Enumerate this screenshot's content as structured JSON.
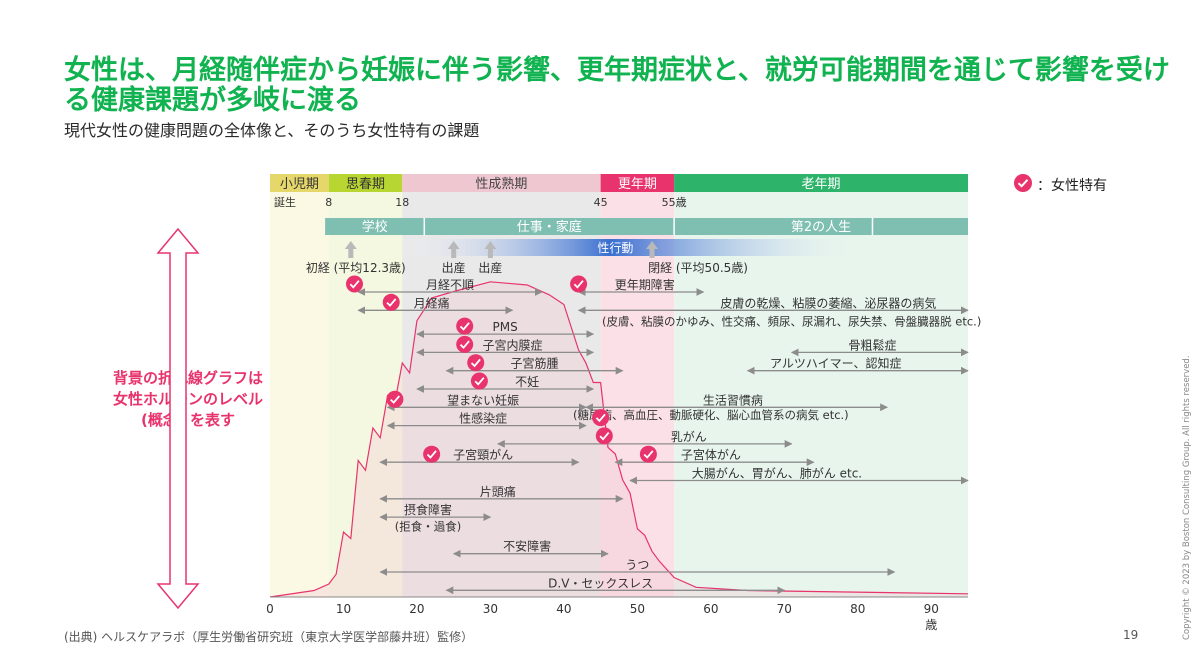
{
  "title": "女性は、月経随伴症から妊娠に伴う影響、更年期症状と、就労可能期間を通じて影響を受ける健康課題が多岐に渡る",
  "subtitle": "現代女性の健康問題の全体像と、そのうち女性特有の課題",
  "legend_label": "：女性特有",
  "side_note": [
    "背景の折れ線グラフは",
    "女性ホルモンのレベル",
    "(概念) を表す"
  ],
  "source": "(出典) ヘルスケアラボ（厚生労働省研究班（東京大学医学部藤井班）監修）",
  "page_number": "19",
  "copyright": "Copyright © 2023 by Boston Consulting Group. All rights reserved.",
  "colors": {
    "title_green": "#10b34f",
    "accent_pink": "#e8336d",
    "childhood": "#e6d76b",
    "puberty": "#b7d631",
    "maturity": "#efc7d1",
    "menopause": "#e8336d",
    "old_age": "#2eb36b",
    "activity_bar": "#7fbfb2"
  },
  "axis": {
    "min": 0,
    "max": 95,
    "ticks": [
      0,
      10,
      20,
      30,
      40,
      50,
      60,
      70,
      80,
      90
    ],
    "unit": "歳"
  },
  "stages": [
    {
      "label": "小児期",
      "start": 0,
      "end": 8,
      "color": "#e6d76b",
      "text_color": "#333333"
    },
    {
      "label": "思春期",
      "start": 8,
      "end": 18,
      "color": "#b7d631",
      "text_color": "#333333"
    },
    {
      "label": "性成熟期",
      "start": 18,
      "end": 45,
      "color": "#efc7d1",
      "text_color": "#444444"
    },
    {
      "label": "更年期",
      "start": 45,
      "end": 55,
      "color": "#e8336d",
      "text_color": "#ffffff"
    },
    {
      "label": "老年期",
      "start": 55,
      "end": 95,
      "color": "#2eb36b",
      "text_color": "#ffffff"
    }
  ],
  "age_markers": [
    {
      "label": "誕生",
      "age": 0
    },
    {
      "label": "8",
      "age": 8
    },
    {
      "label": "18",
      "age": 18
    },
    {
      "label": "45",
      "age": 45
    },
    {
      "label": "55歳",
      "age": 55
    }
  ],
  "activities": [
    {
      "label": "学校",
      "start": 7.5,
      "end": 21
    },
    {
      "label": "仕事・家庭",
      "start": 21,
      "end": 55
    },
    {
      "label": "第2の人生",
      "start": 55,
      "end": 95
    }
  ],
  "activity_dividers": [
    21,
    55,
    82
  ],
  "gradient_bar_label": "性行動",
  "life_events": [
    {
      "label": "初経 (平均12.3歳)",
      "age": 11
    },
    {
      "label": "出産",
      "age": 25
    },
    {
      "label": "出産",
      "age": 30
    },
    {
      "label": "閉経 (平均50.5歳)",
      "age": 52
    }
  ],
  "issues": [
    {
      "label": "月経不順",
      "start": 12,
      "end": 37,
      "female_specific": true,
      "row": 0,
      "label_at": 24.5,
      "check_at": 11.5
    },
    {
      "label": "更年期障害",
      "start": 42,
      "end": 59,
      "female_specific": true,
      "row": 0,
      "label_at": 51,
      "check_at": 42
    },
    {
      "label": "月経痛",
      "start": 12,
      "end": 33,
      "female_specific": true,
      "row": 1,
      "label_at": 22,
      "check_at": 16.5
    },
    {
      "label": "皮膚の乾燥、粘膜の萎縮、泌尿器の病気",
      "start": 42,
      "end": 95,
      "female_specific": false,
      "row": 1,
      "label_at": 76
    },
    {
      "label": "(皮膚、粘膜のかゆみ、性交痛、頻尿、尿漏れ、尿失禁、骨盤臓器脱 etc.)",
      "start": 0,
      "end": 0,
      "female_specific": false,
      "row": 2,
      "label_at": 71,
      "note": true
    },
    {
      "label": "PMS",
      "start": 20,
      "end": 44,
      "female_specific": true,
      "row": 2.3,
      "label_at": 32,
      "check_at": 26.5
    },
    {
      "label": "子宮内膜症",
      "start": 20,
      "end": 44,
      "female_specific": true,
      "row": 3.3,
      "label_at": 33,
      "check_at": 26.5
    },
    {
      "label": "骨粗鬆症",
      "start": 71,
      "end": 95,
      "female_specific": false,
      "row": 3.3,
      "label_at": 82
    },
    {
      "label": "子宮筋腫",
      "start": 24,
      "end": 48,
      "female_specific": true,
      "row": 4.3,
      "label_at": 36,
      "check_at": 28
    },
    {
      "label": "アルツハイマー、認知症",
      "start": 65,
      "end": 95,
      "female_specific": false,
      "row": 4.3,
      "label_at": 77
    },
    {
      "label": "不妊",
      "start": 20,
      "end": 44,
      "female_specific": true,
      "row": 5.3,
      "label_at": 35,
      "check_at": 28.5
    },
    {
      "label": "望まない妊娠",
      "start": 16,
      "end": 43,
      "female_specific": true,
      "row": 6.3,
      "label_at": 29,
      "check_at": 17
    },
    {
      "label": "生活習慣病",
      "start": 43,
      "end": 84,
      "female_specific": false,
      "row": 6.3,
      "label_at": 63
    },
    {
      "label": "(糖尿病、高血圧、動脈硬化、脳心血管系の病気 etc.)",
      "start": 0,
      "end": 0,
      "female_specific": false,
      "row": 7.1,
      "label_at": 60,
      "note": true
    },
    {
      "label": "性感染症",
      "start": 16,
      "end": 43,
      "female_specific": true,
      "row": 7.3,
      "label_at": 29,
      "check_at": 45
    },
    {
      "label": "乳がん",
      "start": 31,
      "end": 71,
      "female_specific": true,
      "row": 8.3,
      "label_at": 57,
      "check_at": 45.5
    },
    {
      "label": "子宮頸がん",
      "start": 15,
      "end": 42,
      "female_specific": true,
      "row": 9.3,
      "label_at": 29,
      "check_at": 22
    },
    {
      "label": "子宮体がん",
      "start": 47,
      "end": 74,
      "female_specific": true,
      "row": 9.3,
      "label_at": 60,
      "check_at": 51.5
    },
    {
      "label": "大腸がん、胃がん、肺がん etc.",
      "start": 49,
      "end": 95,
      "female_specific": false,
      "row": 10.3,
      "label_at": 69
    },
    {
      "label": "片頭痛",
      "start": 15,
      "end": 48,
      "female_specific": false,
      "row": 11.3,
      "label_at": 31
    },
    {
      "label": "摂食障害",
      "start": 15,
      "end": 30,
      "female_specific": false,
      "row": 12.3,
      "label_at": 21.5
    },
    {
      "label": "(拒食・過食)",
      "start": 0,
      "end": 0,
      "female_specific": false,
      "row": 13.2,
      "label_at": 21.5,
      "note": true
    },
    {
      "label": "不安障害",
      "start": 25,
      "end": 46,
      "female_specific": false,
      "row": 14.3,
      "label_at": 35
    },
    {
      "label": "うつ",
      "start": 15,
      "end": 85,
      "female_specific": false,
      "row": 15.3,
      "label_at": 50
    },
    {
      "label": "D.V・セックスレス",
      "start": 24,
      "end": 70,
      "female_specific": false,
      "row": 16.3,
      "label_at": 45
    }
  ],
  "hormone_curve": [
    [
      0,
      0
    ],
    [
      6,
      2
    ],
    [
      8,
      4
    ],
    [
      9,
      7
    ],
    [
      10,
      20
    ],
    [
      11,
      18
    ],
    [
      12,
      42
    ],
    [
      13,
      39
    ],
    [
      14,
      52
    ],
    [
      15,
      49
    ],
    [
      16,
      62
    ],
    [
      17,
      60
    ],
    [
      18,
      72
    ],
    [
      19,
      69
    ],
    [
      20,
      85
    ],
    [
      22,
      92
    ],
    [
      25,
      94
    ],
    [
      30,
      97
    ],
    [
      35,
      96
    ],
    [
      38,
      93
    ],
    [
      40,
      90
    ],
    [
      42,
      76
    ],
    [
      43,
      72
    ],
    [
      44,
      66
    ],
    [
      45,
      66
    ],
    [
      46,
      46
    ],
    [
      47,
      44
    ],
    [
      48,
      36
    ],
    [
      49,
      32
    ],
    [
      50,
      21
    ],
    [
      51,
      19
    ],
    [
      52,
      14
    ],
    [
      53,
      11
    ],
    [
      55,
      6
    ],
    [
      58,
      3
    ],
    [
      65,
      2
    ],
    [
      95,
      1
    ]
  ]
}
